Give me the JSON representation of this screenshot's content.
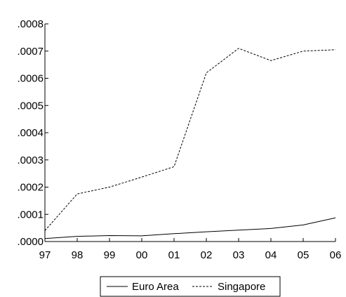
{
  "chart_data": {
    "type": "line",
    "title": "",
    "xlabel": "",
    "ylabel": "",
    "categories": [
      "97",
      "98",
      "99",
      "00",
      "01",
      "02",
      "03",
      "04",
      "05",
      "06"
    ],
    "y_ticks": [
      ".0000",
      ".0001",
      ".0002",
      ".0003",
      ".0004",
      ".0005",
      ".0006",
      ".0007",
      ".0008"
    ],
    "y_tick_values": [
      0,
      0.0001,
      0.0002,
      0.0003,
      0.0004,
      0.0005,
      0.0006,
      0.0007,
      0.0008
    ],
    "ylim": [
      0,
      0.0008
    ],
    "grid": false,
    "legend_position": "bottom-center",
    "series": [
      {
        "name": "Euro Area",
        "line_style": "solid",
        "color": "#000000",
        "values": [
          1.1e-05,
          1.9e-05,
          2.2e-05,
          2.1e-05,
          2.9e-05,
          3.6e-05,
          4.2e-05,
          4.8e-05,
          6.1e-05,
          8.7e-05
        ]
      },
      {
        "name": "Singapore",
        "line_style": "dashed",
        "color": "#000000",
        "values": [
          4e-05,
          0.000175,
          0.0002,
          0.000237,
          0.000275,
          0.00062,
          0.00071,
          0.000665,
          0.0007,
          0.000705
        ]
      }
    ]
  }
}
